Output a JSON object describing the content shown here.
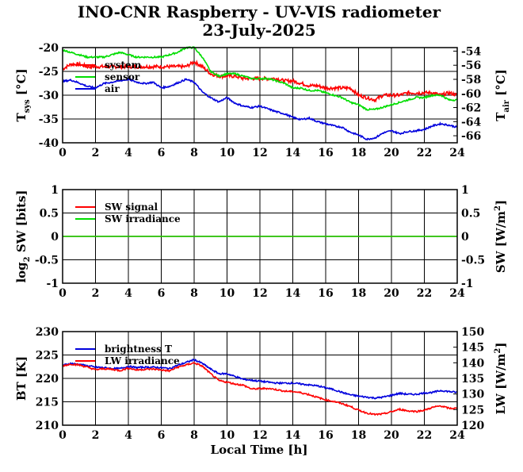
{
  "title": "INO-CNR Raspberry - UV-VIS radiometer",
  "subtitle": "23-July-2025",
  "xlabel": "Local Time [h]",
  "colors": {
    "red": "#ff0000",
    "green": "#00dd00",
    "blue": "#0000dd"
  },
  "chart_data": [
    {
      "type": "line",
      "xlim": [
        0,
        24
      ],
      "xticks": [
        "0",
        "2",
        "4",
        "6",
        "8",
        "10",
        "12",
        "14",
        "16",
        "18",
        "20",
        "22",
        "24"
      ],
      "ylabel_left": {
        "main": "T",
        "sub": "sys",
        "rest": " [°C]"
      },
      "ylabel_right": {
        "main": "T",
        "sub": "air",
        "rest": " [°C]"
      },
      "ylim_left": [
        -40,
        -20
      ],
      "yticks_left": [
        "-20",
        "-25",
        "-30",
        "-35",
        "-40"
      ],
      "ylim_right": [
        -67,
        -53.5
      ],
      "yticks_right": [
        "-54",
        "-56",
        "-58",
        "-60",
        "-62",
        "-64",
        "-66"
      ],
      "grid": true,
      "legend": "top-left",
      "series": [
        {
          "name": "system",
          "axis": "left",
          "color": "red",
          "x": [
            0,
            0.5,
            1,
            1.5,
            2,
            2.5,
            3,
            3.5,
            4,
            4.5,
            5,
            5.5,
            6,
            6.5,
            7,
            7.5,
            8,
            8.5,
            9,
            9.5,
            10,
            10.5,
            11,
            11.5,
            12,
            12.5,
            13,
            13.5,
            14,
            14.5,
            15,
            15.5,
            16,
            16.5,
            17,
            17.5,
            18,
            18.5,
            19,
            19.5,
            20,
            20.5,
            21,
            21.5,
            22,
            22.5,
            23,
            23.5,
            24
          ],
          "y": [
            -24.5,
            -23.5,
            -23.5,
            -24,
            -24,
            -24,
            -24,
            -24,
            -24,
            -24,
            -24,
            -24,
            -24,
            -24,
            -24,
            -24,
            -23,
            -24,
            -25.5,
            -26,
            -26,
            -26,
            -26.5,
            -26.5,
            -26.5,
            -26.5,
            -26.5,
            -27,
            -27,
            -27.5,
            -28,
            -28,
            -28.5,
            -28.5,
            -28.5,
            -28.5,
            -30,
            -30.5,
            -31,
            -30,
            -30,
            -30,
            -29.5,
            -29.5,
            -29.5,
            -29.5,
            -30,
            -29.5,
            -30
          ]
        },
        {
          "name": "sensor",
          "axis": "left",
          "color": "green",
          "x": [
            0,
            0.5,
            1,
            1.5,
            2,
            2.5,
            3,
            3.5,
            4,
            4.5,
            5,
            5.5,
            6,
            6.5,
            7,
            7.5,
            8,
            8.5,
            9,
            9.5,
            10,
            10.5,
            11,
            11.5,
            12,
            12.5,
            13,
            13.5,
            14,
            14.5,
            15,
            15.5,
            16,
            16.5,
            17,
            17.5,
            18,
            18.5,
            19,
            19.5,
            20,
            20.5,
            21,
            21.5,
            22,
            22.5,
            23,
            23.5,
            24
          ],
          "y": [
            -20.5,
            -21,
            -21.5,
            -22,
            -22,
            -22,
            -21.5,
            -21,
            -21.5,
            -22,
            -22,
            -22,
            -22,
            -21.5,
            -21,
            -20,
            -20,
            -22,
            -25,
            -26,
            -25.5,
            -25.5,
            -26,
            -26.5,
            -26.5,
            -26.5,
            -27,
            -27.5,
            -28.5,
            -28.5,
            -29,
            -29,
            -29.5,
            -30,
            -30.5,
            -31.5,
            -32,
            -33,
            -33,
            -32.5,
            -32,
            -31.5,
            -31,
            -30.5,
            -30.5,
            -30,
            -30,
            -31,
            -31
          ]
        },
        {
          "name": "air",
          "axis": "right",
          "color": "blue",
          "x": [
            0,
            0.5,
            1,
            1.5,
            2,
            2.5,
            3,
            3.5,
            4,
            4.5,
            5,
            5.5,
            6,
            6.5,
            7,
            7.5,
            8,
            8.5,
            9,
            9.5,
            10,
            10.5,
            11,
            11.5,
            12,
            12.5,
            13,
            13.5,
            14,
            14.5,
            15,
            15.5,
            16,
            16.5,
            17,
            17.5,
            18,
            18.5,
            19,
            19.5,
            20,
            20.5,
            21,
            21.5,
            22,
            22.5,
            23,
            23.5,
            24
          ],
          "y": [
            -58.3,
            -58.1,
            -58.5,
            -59,
            -59.2,
            -58.6,
            -58.4,
            -58.2,
            -58,
            -58.4,
            -58.6,
            -58.4,
            -59.2,
            -59,
            -58.5,
            -58,
            -58.4,
            -59.8,
            -60.6,
            -61.2,
            -60.6,
            -61.4,
            -61.8,
            -62,
            -61.8,
            -62.2,
            -62.6,
            -62.9,
            -63.4,
            -63.7,
            -63.5,
            -64,
            -64.3,
            -64.6,
            -64.8,
            -65.5,
            -65.9,
            -66.5,
            -66.3,
            -65.6,
            -65.3,
            -65.7,
            -65.4,
            -65.3,
            -65.1,
            -64.6,
            -64.3,
            -64.5,
            -64.8
          ]
        }
      ]
    },
    {
      "type": "line",
      "xlim": [
        0,
        24
      ],
      "xticks": [
        "0",
        "2",
        "4",
        "6",
        "8",
        "10",
        "12",
        "14",
        "16",
        "18",
        "20",
        "22",
        "24"
      ],
      "ylabel_left": {
        "main": "log",
        "sub": "2",
        "rest": " SW [bits]"
      },
      "ylabel_right": {
        "main": "SW [W/m",
        "sup": "2",
        "rest": "]"
      },
      "ylim_left": [
        -1,
        1
      ],
      "yticks_left": [
        "1",
        "0.5",
        "0",
        "-0.5",
        "-1"
      ],
      "ylim_right": [
        -1,
        1
      ],
      "yticks_right": [
        "1",
        "0.5",
        "0",
        "-0.5",
        "-1"
      ],
      "grid": true,
      "legend": "top-left",
      "series": [
        {
          "name": "SW signal",
          "axis": "left",
          "color": "red",
          "x": [
            0,
            24
          ],
          "y": [
            0,
            0
          ]
        },
        {
          "name": "SW irradiance",
          "axis": "right",
          "color": "green",
          "x": [
            0,
            24
          ],
          "y": [
            0,
            0
          ]
        }
      ]
    },
    {
      "type": "line",
      "xlim": [
        0,
        24
      ],
      "xticks": [
        "0",
        "2",
        "4",
        "6",
        "8",
        "10",
        "12",
        "14",
        "16",
        "18",
        "20",
        "22",
        "24"
      ],
      "ylabel_left": {
        "main": "BT [K]"
      },
      "ylabel_right": {
        "main": "LW [W/m",
        "sup": "2",
        "rest": "]"
      },
      "ylim_left": [
        210,
        230
      ],
      "yticks_left": [
        "230",
        "225",
        "220",
        "215",
        "210"
      ],
      "ylim_right": [
        120,
        150
      ],
      "yticks_right": [
        "150",
        "145",
        "140",
        "135",
        "130",
        "125",
        "120"
      ],
      "grid": true,
      "legend": "top-left",
      "series": [
        {
          "name": "brightness T",
          "axis": "left",
          "color": "blue",
          "x": [
            0,
            0.5,
            1,
            1.5,
            2,
            2.5,
            3,
            3.5,
            4,
            4.5,
            5,
            5.5,
            6,
            6.5,
            7,
            7.5,
            8,
            8.5,
            9,
            9.5,
            10,
            10.5,
            11,
            11.5,
            12,
            12.5,
            13,
            13.5,
            14,
            14.5,
            15,
            15.5,
            16,
            16.5,
            17,
            17.5,
            18,
            18.5,
            19,
            19.5,
            20,
            20.5,
            21,
            21.5,
            22,
            22.5,
            23,
            23.5,
            24
          ],
          "y": [
            222.8,
            223.2,
            223,
            222.7,
            222.4,
            222.3,
            222.1,
            222.1,
            222.6,
            222.3,
            222.4,
            222.4,
            222.3,
            222.1,
            222.8,
            223.4,
            224,
            223.2,
            222,
            221,
            221,
            220.4,
            219.8,
            219.6,
            219.4,
            219.2,
            219,
            219,
            219,
            218.8,
            218.6,
            218.4,
            218,
            217.6,
            217,
            216.5,
            216.2,
            216,
            215.8,
            216,
            216.4,
            216.8,
            216.6,
            216.6,
            216.9,
            217,
            217.4,
            217.2,
            217
          ]
        },
        {
          "name": "LW irradiance",
          "axis": "right",
          "color": "red",
          "x": [
            0,
            0.5,
            1,
            1.5,
            2,
            2.5,
            3,
            3.5,
            4,
            4.5,
            5,
            5.5,
            6,
            6.5,
            7,
            7.5,
            8,
            8.5,
            9,
            9.5,
            10,
            10.5,
            11,
            11.5,
            12,
            12.5,
            13,
            13.5,
            14,
            14.5,
            15,
            15.5,
            16,
            16.5,
            17,
            17.5,
            18,
            18.5,
            19,
            19.5,
            20,
            20.5,
            21,
            21.5,
            22,
            22.5,
            23,
            23.5,
            24
          ],
          "y": [
            139,
            139.6,
            139.3,
            138.6,
            137.8,
            138.1,
            137.9,
            137.5,
            138.3,
            137.7,
            137.9,
            138,
            137.7,
            137.4,
            138.6,
            139.3,
            140,
            138.9,
            136.5,
            134.3,
            133.8,
            133.2,
            132.8,
            131.6,
            131.7,
            131.8,
            131.4,
            130.9,
            130.8,
            130.4,
            129.8,
            128.9,
            128.1,
            127.6,
            126.9,
            126,
            124.8,
            123.9,
            123.4,
            123.6,
            124.3,
            125.1,
            124.6,
            124.4,
            124.8,
            125.7,
            126.2,
            125.4,
            125.4
          ]
        }
      ]
    }
  ]
}
